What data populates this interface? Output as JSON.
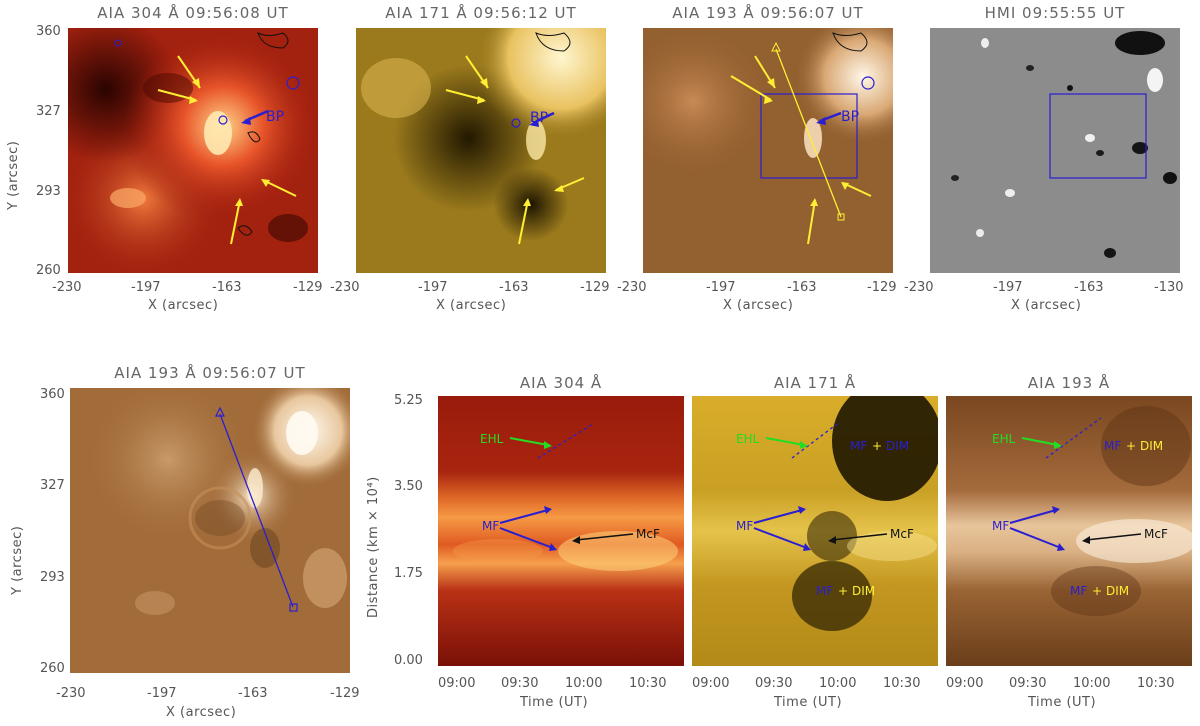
{
  "top_row": {
    "panels": [
      {
        "title": "AIA 304 Å 09:56:08 UT",
        "bg": "#9b1a0c"
      },
      {
        "title": "AIA 171 Å 09:56:12 UT",
        "bg": "#8a6b12"
      },
      {
        "title": "AIA 193 Å 09:56:07 UT",
        "bg": "#8f5a2c"
      },
      {
        "title": "HMI 09:55:55 UT",
        "bg": "#8d8d8d"
      }
    ],
    "xticks": [
      "-230",
      "-197",
      "-163",
      "-129",
      "-230",
      "-197",
      "-163",
      "-129",
      "-230",
      "-197",
      "-163",
      "-129",
      "-230",
      "-197",
      "-163",
      "-130"
    ],
    "yticks": [
      "360",
      "327",
      "293",
      "260"
    ],
    "xlabel": "X (arcsec)",
    "ylabel": "Y (arcsec)",
    "annotation_bp": "BP"
  },
  "bottom_left": {
    "title": "AIA 193 Å 09:56:07 UT",
    "xticks": [
      "-230",
      "-197",
      "-163",
      "-129"
    ],
    "yticks": [
      "360",
      "327",
      "293",
      "260"
    ],
    "xlabel": "X (arcsec)",
    "ylabel": "Y (arcsec)"
  },
  "time_distance": {
    "panels": [
      {
        "title": "AIA 304 Å"
      },
      {
        "title": "AIA 171 Å"
      },
      {
        "title": "AIA 193 Å"
      }
    ],
    "xticks": [
      "09:00",
      "09:30",
      "10:00",
      "10:30"
    ],
    "yticks": [
      "5.25",
      "3.50",
      "1.75",
      "0.00"
    ],
    "xlabel": "Time (UT)",
    "ylabel": "Distance (km × 10⁴)",
    "labels": {
      "ehl": "EHL",
      "mf": "MF",
      "mcf": "McF",
      "mf_dim_mf": "MF",
      "mf_dim_plus": "+",
      "mf_dim_dim": "DIM"
    }
  },
  "colors": {
    "arrow_yellow": "#ffee33",
    "contour_blue": "#2a1fd0",
    "ehl_green": "#22dd22"
  }
}
